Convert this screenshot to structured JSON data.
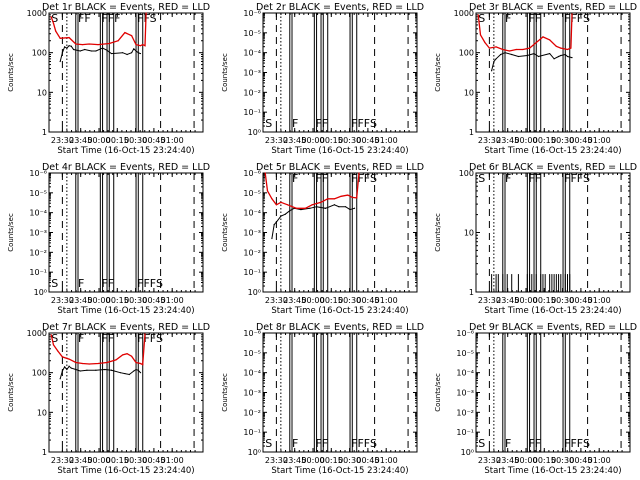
{
  "chart_data": [
    {
      "type": "line",
      "title": "Det 1r BLACK = Events, RED = LLD",
      "xlabel": "Start Time (16-Oct-15 23:24:40)",
      "ylabel": "Counts/sec",
      "y_scale": "log",
      "ylim": [
        1,
        1000
      ],
      "y_ticks": [
        "1",
        "10",
        "100",
        "1000"
      ],
      "x_ticks": [
        "23:30",
        "23:45",
        "00:00",
        "00:15",
        "00:30",
        "00:45",
        "01:00"
      ],
      "flags": [
        "S",
        "FF",
        "FFF",
        "FFS"
      ],
      "series": [
        {
          "color": "#000000",
          "x": [
            34,
            35,
            36,
            37,
            38,
            39,
            40,
            43,
            45,
            48,
            50,
            53,
            55,
            57,
            62,
            64,
            66,
            67,
            68,
            69,
            70
          ],
          "y": [
            60,
            100,
            140,
            130,
            150,
            145,
            120,
            110,
            120,
            110,
            110,
            130,
            115,
            95,
            100,
            90,
            100,
            125,
            110,
            100,
            95
          ]
        },
        {
          "color": "#e00000",
          "x": [
            30,
            31,
            32,
            34,
            38,
            41,
            44,
            47,
            51,
            56,
            60,
            63,
            66,
            68,
            70,
            71,
            72,
            72.5
          ],
          "y": [
            800,
            550,
            350,
            230,
            240,
            165,
            160,
            165,
            160,
            170,
            200,
            320,
            270,
            160,
            150,
            160,
            150,
            1000
          ]
        }
      ]
    },
    {
      "type": "line",
      "title": "Det 2r BLACK = Events, RED = LLD",
      "xlabel": "Start Time (16-Oct-15 23:24:40)",
      "ylabel": "Counts/sec",
      "y_scale": "log",
      "ylim": [
        1,
        1e-06
      ],
      "y_ticks": [
        "10⁰",
        "10⁻¹",
        "10⁻²",
        "10⁻³",
        "10⁻⁴",
        "10⁻⁵",
        "10⁻⁶"
      ],
      "x_ticks": [
        "23:30",
        "23:45",
        "00:00",
        "00:15",
        "00:30",
        "00:45",
        "01:00"
      ],
      "flags": [
        "S",
        "F",
        "FF",
        "FFFS"
      ],
      "series": []
    },
    {
      "type": "line",
      "title": "Det 3r BLACK = Events, RED = LLD",
      "xlabel": "Start Time (16-Oct-15 23:24:40)",
      "ylabel": "Counts/sec",
      "y_scale": "log",
      "ylim": [
        1,
        1000
      ],
      "y_ticks": [
        "1",
        "10",
        "100",
        "1000"
      ],
      "x_ticks": [
        "23:30",
        "23:45",
        "00:00",
        "00:15",
        "00:30",
        "00:45",
        "01:00"
      ],
      "flags": [
        "S",
        "F",
        "FF",
        "FFFS"
      ],
      "series": [
        {
          "color": "#000000",
          "x": [
            36,
            37,
            38,
            40,
            42,
            45,
            48,
            52,
            55,
            57,
            62,
            64,
            66,
            67,
            69,
            70,
            72
          ],
          "y": [
            35,
            60,
            70,
            90,
            100,
            90,
            80,
            85,
            95,
            80,
            95,
            70,
            80,
            85,
            90,
            80,
            75
          ]
        },
        {
          "color": "#e00000",
          "x": [
            30,
            31,
            33,
            35,
            38,
            41,
            44,
            47,
            50,
            53,
            56,
            59,
            62,
            65,
            67,
            70,
            71.5,
            72
          ],
          "y": [
            900,
            280,
            180,
            130,
            140,
            120,
            110,
            120,
            120,
            130,
            180,
            250,
            210,
            145,
            130,
            120,
            130,
            950
          ]
        }
      ]
    },
    {
      "type": "line",
      "title": "Det 4r BLACK = Events, RED = LLD",
      "xlabel": "Start Time (16-Oct-15 23:24:40)",
      "ylabel": "Counts/sec",
      "y_scale": "log",
      "ylim": [
        1,
        1e-06
      ],
      "y_ticks": [
        "10⁰",
        "10⁻¹",
        "10⁻²",
        "10⁻³",
        "10⁻⁴",
        "10⁻⁵",
        "10⁻⁶"
      ],
      "x_ticks": [
        "23:30",
        "23:45",
        "00:00",
        "00:15",
        "00:30",
        "00:45",
        "01:00"
      ],
      "flags": [
        "S",
        "F",
        "FF",
        "FFFS"
      ],
      "series": []
    },
    {
      "type": "line",
      "title": "Det 5r BLACK = Events, RED = LLD",
      "xlabel": "Start Time (16-Oct-15 23:24:40)",
      "ylabel": "Counts/sec",
      "y_scale": "log",
      "ylim": [
        1,
        1e-06
      ],
      "y_ticks": [
        "10⁰",
        "10⁻¹",
        "10⁻²",
        "10⁻³",
        "10⁻⁴",
        "10⁻⁵",
        "10⁻⁶"
      ],
      "x_ticks": [
        "23:30",
        "23:45",
        "00:00",
        "00:15",
        "00:30",
        "00:45",
        "01:00"
      ],
      "flags": [
        "F",
        "FF",
        "FFFS"
      ],
      "series": [
        {
          "color": "#000000",
          "x": [
            33,
            34,
            35,
            37,
            39,
            41,
            43,
            46,
            50,
            53,
            57,
            61,
            63,
            66,
            68,
            70
          ],
          "y": [
            0.002,
            0.0004,
            0.0003,
            0.00015,
            0.00012,
            8e-05,
            6e-05,
            7e-05,
            6e-05,
            5e-05,
            6e-05,
            4e-05,
            5e-05,
            5e-05,
            7e-05,
            6e-05
          ]
        },
        {
          "color": "#e00000",
          "x": [
            30,
            31,
            33,
            35,
            37,
            40,
            44,
            48,
            51,
            55,
            58,
            61,
            64,
            67,
            69,
            71,
            72
          ],
          "y": [
            1e-06,
            8e-06,
            2e-05,
            4e-05,
            3e-05,
            4e-05,
            6e-05,
            6e-05,
            4e-05,
            3e-05,
            2e-05,
            2e-05,
            1.5e-05,
            1.3e-05,
            1.7e-05,
            1.8e-05,
            1e-06
          ]
        }
      ]
    },
    {
      "type": "line",
      "title": "Det 6r BLACK = Events, RED = LLD",
      "xlabel": "Start Time (16-Oct-15 23:24:40)",
      "ylabel": "Counts/sec",
      "y_scale": "log",
      "ylim": [
        1,
        100
      ],
      "y_ticks": [
        "1",
        "10",
        "100"
      ],
      "x_ticks": [
        "23:30",
        "23:45",
        "00:00",
        "00:15",
        "00:30",
        "00:45",
        "01:00"
      ],
      "flags": [
        "S",
        "F",
        "FF",
        "FFFS"
      ],
      "series": [
        {
          "color": "#000000",
          "type": "spikes",
          "x": [
            36,
            38,
            39,
            41,
            43,
            45,
            48,
            52,
            53,
            54,
            55,
            56,
            58,
            59,
            60,
            62,
            63,
            64,
            65,
            66,
            67,
            69,
            70,
            71
          ],
          "y": [
            2,
            2,
            2,
            2,
            2,
            2,
            2,
            2,
            2,
            2,
            2,
            2,
            2,
            2,
            2,
            2,
            2,
            2,
            2,
            2,
            2,
            2,
            2,
            2
          ]
        }
      ]
    },
    {
      "type": "line",
      "title": "Det 7r BLACK = Events, RED = LLD",
      "xlabel": "Start Time (16-Oct-15 23:24:40)",
      "ylabel": "Counts/sec",
      "y_scale": "log",
      "ylim": [
        1,
        1000
      ],
      "y_ticks": [
        "1",
        "10",
        "100",
        "1000"
      ],
      "x_ticks": [
        "23:30",
        "23:45",
        "00:00",
        "00:15",
        "00:30",
        "00:45",
        "01:00"
      ],
      "flags": [
        "S",
        "F",
        "FF",
        "FFFS"
      ],
      "series": [
        {
          "color": "#000000",
          "x": [
            34,
            35,
            36,
            37,
            38,
            39,
            41,
            43,
            46,
            50,
            54,
            57,
            61,
            63,
            65,
            67,
            68,
            69,
            70
          ],
          "y": [
            70,
            110,
            140,
            120,
            145,
            130,
            120,
            110,
            115,
            115,
            120,
            115,
            100,
            95,
            90,
            110,
            120,
            115,
            100
          ]
        },
        {
          "color": "#e00000",
          "x": [
            30,
            31,
            33,
            35,
            38,
            41,
            44,
            47,
            51,
            55,
            59,
            62,
            64,
            66,
            68,
            70,
            71,
            72
          ],
          "y": [
            900,
            500,
            350,
            250,
            220,
            180,
            170,
            165,
            170,
            180,
            210,
            280,
            300,
            260,
            180,
            170,
            160,
            950
          ]
        }
      ]
    },
    {
      "type": "line",
      "title": "Det 8r BLACK = Events, RED = LLD",
      "xlabel": "Start Time (16-Oct-15 23:24:40)",
      "ylabel": "Counts/sec",
      "y_scale": "log",
      "ylim": [
        1,
        1e-06
      ],
      "y_ticks": [
        "10⁰",
        "10⁻¹",
        "10⁻²",
        "10⁻³",
        "10⁻⁴",
        "10⁻⁵",
        "10⁻⁶"
      ],
      "x_ticks": [
        "23:30",
        "23:45",
        "00:00",
        "00:15",
        "00:30",
        "00:45",
        "01:00"
      ],
      "flags": [
        "S",
        "F",
        "FF",
        "FFFS"
      ],
      "series": []
    },
    {
      "type": "line",
      "title": "Det 9r BLACK = Events, RED = LLD",
      "xlabel": "Start Time (16-Oct-15 23:24:40)",
      "ylabel": "Counts/sec",
      "y_scale": "log",
      "ylim": [
        1,
        1e-06
      ],
      "y_ticks": [
        "10⁰",
        "10⁻¹",
        "10⁻²",
        "10⁻³",
        "10⁻⁴",
        "10⁻⁵",
        "10⁻⁶"
      ],
      "x_ticks": [
        "23:30",
        "23:45",
        "00:00",
        "00:15",
        "00:30",
        "00:45",
        "01:00"
      ],
      "flags": [
        "S",
        "F",
        "FF",
        "FFFS"
      ],
      "series": []
    }
  ],
  "markers": {
    "x_range": [
      29,
      98
    ],
    "solid": [
      41,
      42,
      52,
      53,
      55,
      56,
      58,
      68,
      69,
      71
    ],
    "dashed": [
      35,
      79,
      94
    ],
    "dotted": [
      37
    ]
  }
}
